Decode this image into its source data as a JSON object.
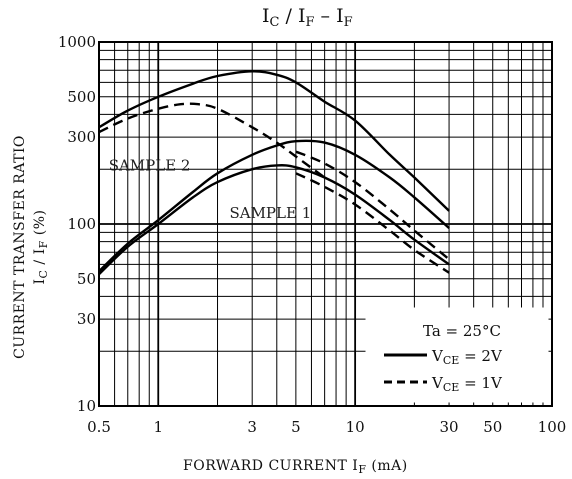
{
  "chart_data": {
    "type": "line",
    "title": {
      "main": "I",
      "sub1": "C",
      "mid": " / I",
      "sub2": "F",
      "tail": "  –  I",
      "sub3": "F"
    },
    "xlabel": {
      "main": "FORWARD CURRENT   I",
      "sub": "F",
      "unit": "   (mA)"
    },
    "ylabel": {
      "line1": "CURRENT TRANSFER RATIO",
      "line2_main": "I",
      "line2_sub1": "C",
      "line2_mid": " / I",
      "line2_sub2": "F",
      "line2_unit": "  (%)"
    },
    "x_scale": "log",
    "y_scale": "log",
    "xlim": [
      0.5,
      100
    ],
    "ylim": [
      10,
      1000
    ],
    "xticks": [
      0.5,
      1,
      3,
      5,
      10,
      30,
      50,
      100
    ],
    "xtick_labels": [
      "0.5",
      "1",
      "3",
      "5",
      "10",
      "30",
      "50",
      "100"
    ],
    "yticks": [
      10,
      30,
      50,
      100,
      300,
      500,
      1000
    ],
    "ytick_labels": [
      "10",
      "30",
      "50",
      "100",
      "300",
      "500",
      "1000"
    ],
    "grid": true,
    "annotations": [
      {
        "text": "SAMPLE 2",
        "x": 0.56,
        "y": 197
      },
      {
        "text": "SAMPLE 1",
        "x": 2.3,
        "y": 108
      }
    ],
    "legend": {
      "position": "bottom-right",
      "condition": "Ta = 25°C",
      "entries": [
        {
          "style": "solid",
          "label_main": "V",
          "label_sub": "CE",
          "label_tail": " = 2V"
        },
        {
          "style": "dashed",
          "label_main": "V",
          "label_sub": "CE",
          "label_tail": " = 1V"
        }
      ]
    },
    "series": [
      {
        "style": "solid",
        "x": [
          0.5,
          0.7,
          1,
          1.5,
          2,
          3,
          4,
          5,
          7,
          10,
          15,
          20,
          30
        ],
        "y": [
          340,
          420,
          500,
          590,
          650,
          690,
          660,
          600,
          470,
          370,
          240,
          180,
          118
        ]
      },
      {
        "style": "dashed",
        "x": [
          0.5,
          0.7,
          1,
          1.3,
          1.6,
          2,
          3,
          4,
          5,
          7
        ],
        "y": [
          320,
          380,
          430,
          455,
          455,
          430,
          340,
          280,
          235,
          180
        ]
      },
      {
        "style": "solid",
        "x": [
          0.5,
          0.7,
          1,
          1.5,
          2,
          3,
          4,
          5,
          7,
          10,
          15,
          20,
          30
        ],
        "y": [
          55,
          78,
          105,
          150,
          190,
          240,
          270,
          285,
          280,
          240,
          180,
          140,
          95
        ]
      },
      {
        "style": "solid",
        "x": [
          0.5,
          0.7,
          1,
          1.5,
          2,
          3,
          4,
          5,
          7,
          10,
          15,
          20,
          30
        ],
        "y": [
          53,
          75,
          100,
          140,
          170,
          200,
          210,
          205,
          180,
          145,
          105,
          82,
          60
        ]
      },
      {
        "style": "dashed",
        "x": [
          5,
          7,
          10,
          15,
          20,
          30
        ],
        "y": [
          250,
          215,
          170,
          120,
          92,
          64
        ]
      },
      {
        "style": "dashed",
        "x": [
          5,
          7,
          10,
          15,
          20,
          30
        ],
        "y": [
          190,
          160,
          128,
          92,
          72,
          54
        ]
      }
    ]
  }
}
